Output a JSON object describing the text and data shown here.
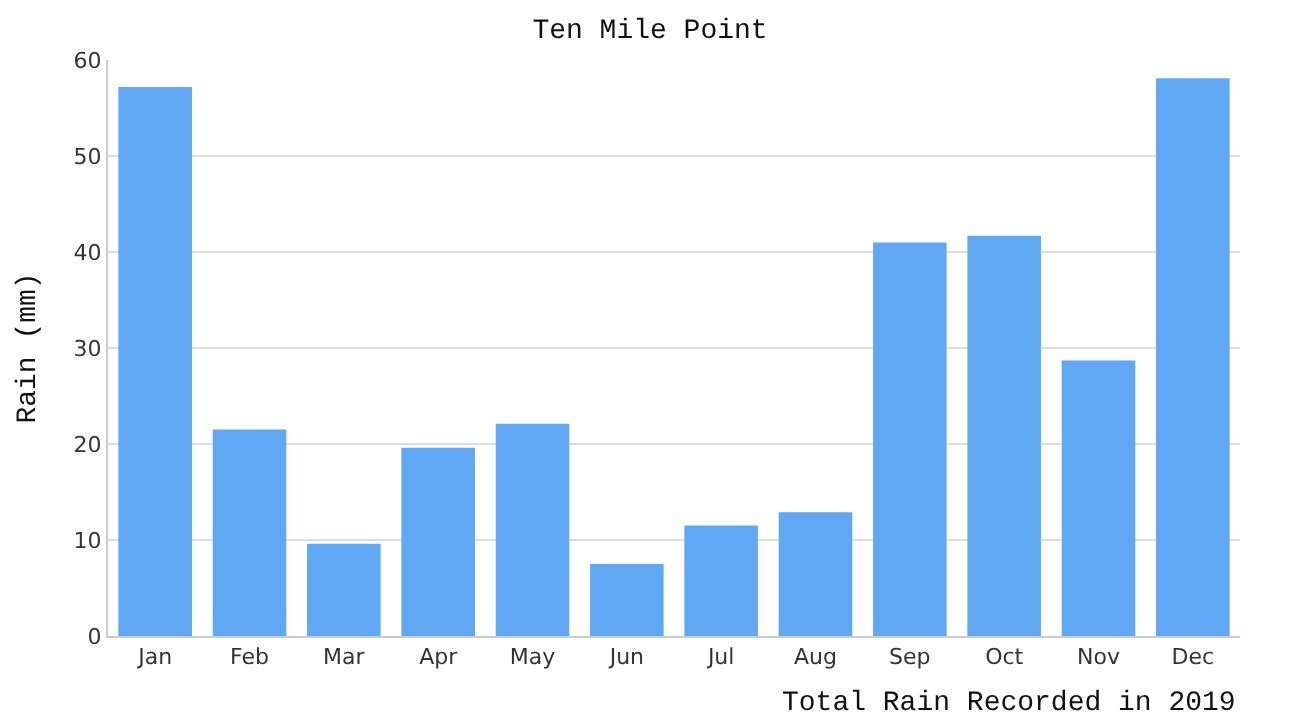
{
  "chart_data": {
    "type": "bar",
    "title": "Ten Mile Point",
    "ylabel": "Rain (mm)",
    "categories": [
      "Jan",
      "Feb",
      "Mar",
      "Apr",
      "May",
      "Jun",
      "Jul",
      "Aug",
      "Sep",
      "Oct",
      "Nov",
      "Dec"
    ],
    "values": [
      57.2,
      21.5,
      9.6,
      19.6,
      22.1,
      7.5,
      11.5,
      12.9,
      41.0,
      41.7,
      28.7,
      58.1
    ],
    "color": "#60a8f4",
    "ylim": [
      0,
      60
    ],
    "yticks": [
      0,
      10,
      20,
      30,
      40,
      50,
      60
    ],
    "grid": "y",
    "annotations": [
      "Total Rain Recorded in 2019"
    ]
  }
}
